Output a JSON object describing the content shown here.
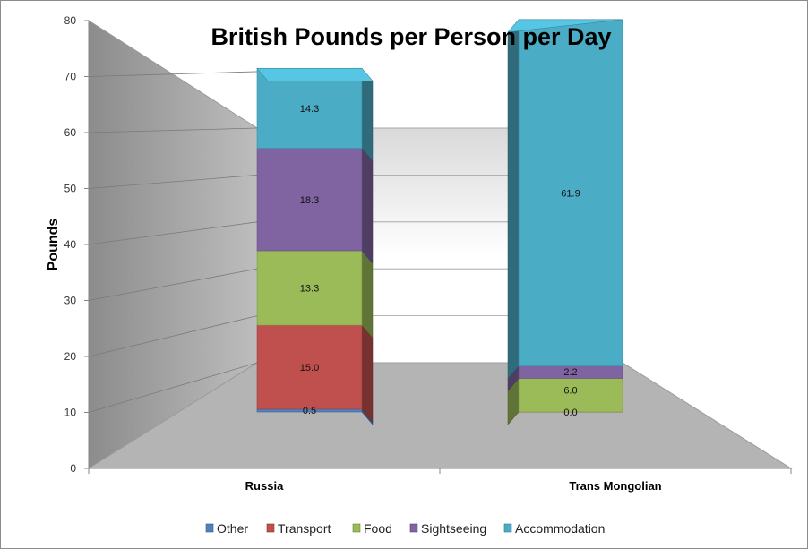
{
  "chart_data": {
    "type": "bar",
    "stacked": true,
    "three_d": true,
    "title": "British Pounds per Person per Day",
    "ylabel": "Pounds",
    "xlabel": "",
    "ylim": [
      0,
      80
    ],
    "yticks": [
      0,
      10,
      20,
      30,
      40,
      50,
      60,
      70,
      80
    ],
    "y_baseline": 10,
    "grid": true,
    "legend": "bottom",
    "categories": [
      "Russia",
      "Trans Mongolian"
    ],
    "series": [
      {
        "name": "Other",
        "values": [
          0.5,
          0.0
        ],
        "labels": [
          "0.5",
          "0.0"
        ],
        "color": "#4f81bd"
      },
      {
        "name": "Transport",
        "values": [
          15.0,
          0.0
        ],
        "labels": [
          "15.0",
          ""
        ],
        "color": "#c0504d"
      },
      {
        "name": "Food",
        "values": [
          13.3,
          6.0
        ],
        "labels": [
          "13.3",
          "6.0"
        ],
        "color": "#9bbb59"
      },
      {
        "name": "Sightseeing",
        "values": [
          18.3,
          2.2
        ],
        "labels": [
          "18.3",
          "2.2"
        ],
        "color": "#8064a2"
      },
      {
        "name": "Accommodation",
        "values": [
          14.3,
          61.9
        ],
        "labels": [
          "14.3",
          "61.9"
        ],
        "color": "#4bacc6"
      }
    ]
  }
}
